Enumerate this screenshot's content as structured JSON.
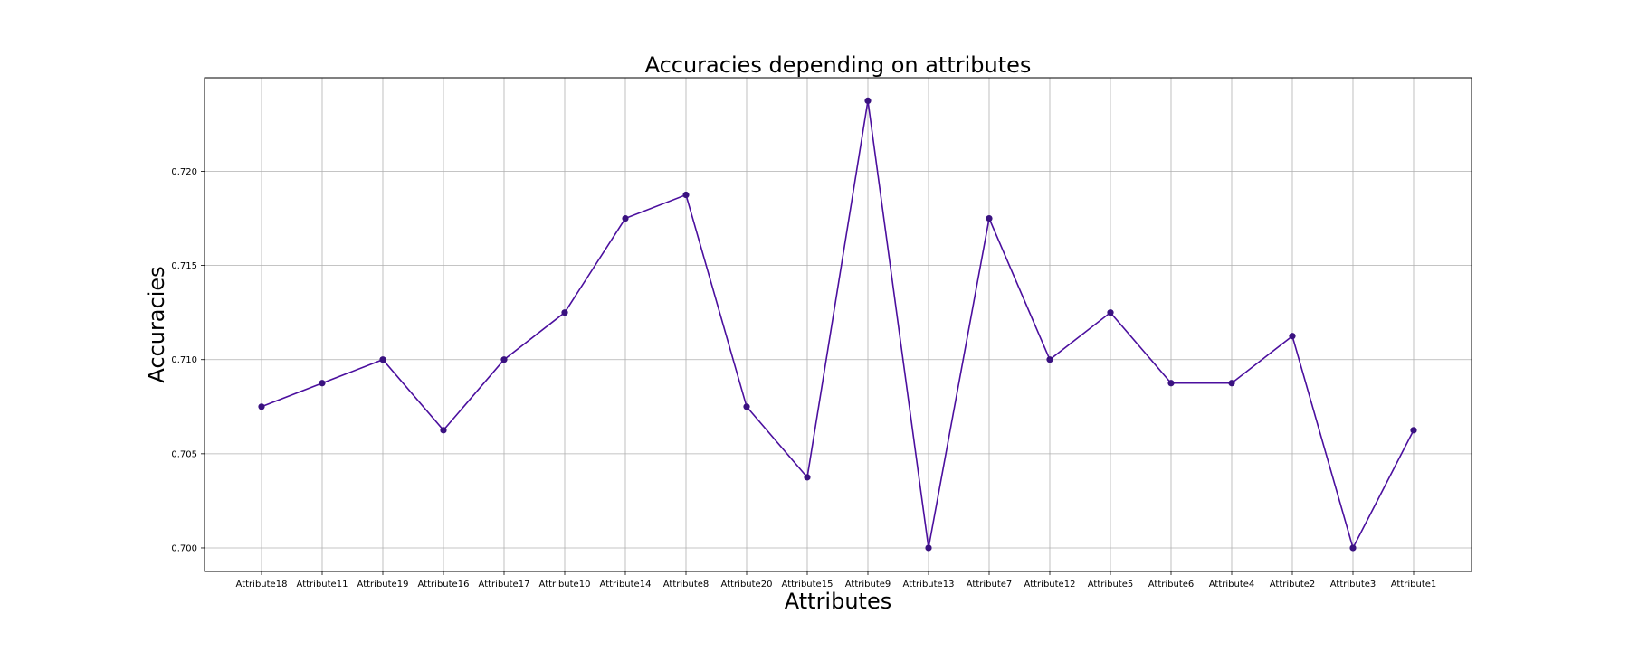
{
  "chart_data": {
    "type": "line",
    "title": "Accuracies depending on attributes",
    "xlabel": "Attributes",
    "ylabel": "Accuracies",
    "categories": [
      "Attribute18",
      "Attribute11",
      "Attribute19",
      "Attribute16",
      "Attribute17",
      "Attribute10",
      "Attribute14",
      "Attribute8",
      "Attribute20",
      "Attribute15",
      "Attribute9",
      "Attribute13",
      "Attribute7",
      "Attribute12",
      "Attribute5",
      "Attribute6",
      "Attribute4",
      "Attribute2",
      "Attribute3",
      "Attribute1"
    ],
    "values": [
      0.7075,
      0.70875,
      0.71,
      0.70625,
      0.71,
      0.7125,
      0.7175,
      0.71875,
      0.7075,
      0.70375,
      0.72375,
      0.7,
      0.7175,
      0.71,
      0.7125,
      0.70875,
      0.70875,
      0.71125,
      0.7,
      0.70625
    ],
    "ylim": [
      0.69875,
      0.72497
    ],
    "yticks": [
      "0.700",
      "0.705",
      "0.710",
      "0.715",
      "0.720"
    ],
    "grid": true,
    "line_color": "#4b0f9e",
    "marker_color": "#3a1280"
  }
}
